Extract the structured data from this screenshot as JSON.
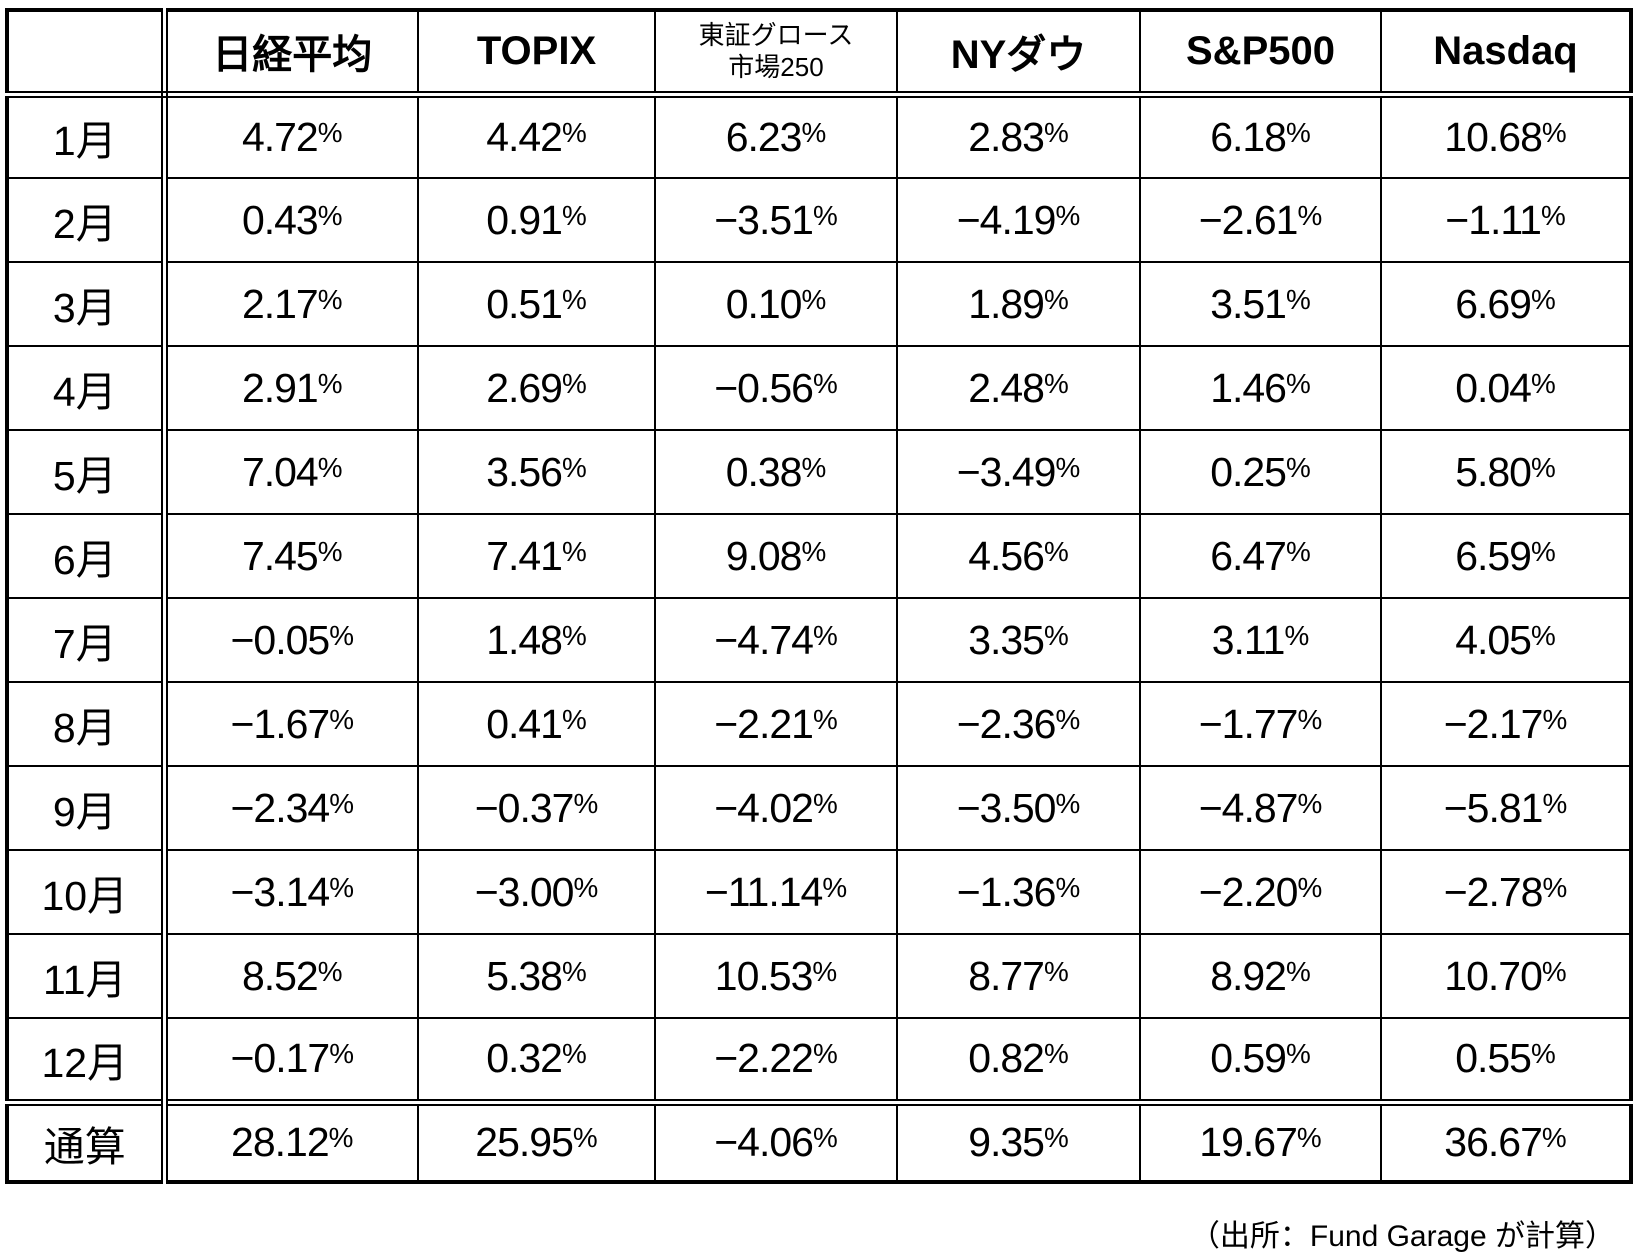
{
  "table": {
    "corner_label": "",
    "columns": [
      {
        "label": "日経平均"
      },
      {
        "label": "TOPIX"
      },
      {
        "label": "東証グロース",
        "sublabel": "市場250"
      },
      {
        "label": "NYダウ"
      },
      {
        "label": "S&P500"
      },
      {
        "label": "Nasdaq"
      }
    ],
    "rows": [
      {
        "label": "1月",
        "values": [
          "4.72%",
          "4.42%",
          "6.23%",
          "2.83%",
          "6.18%",
          "10.68%"
        ]
      },
      {
        "label": "2月",
        "values": [
          "0.43%",
          "0.91%",
          "−3.51%",
          "−4.19%",
          "−2.61%",
          "−1.11%"
        ]
      },
      {
        "label": "3月",
        "values": [
          "2.17%",
          "0.51%",
          "0.10%",
          "1.89%",
          "3.51%",
          "6.69%"
        ]
      },
      {
        "label": "4月",
        "values": [
          "2.91%",
          "2.69%",
          "−0.56%",
          "2.48%",
          "1.46%",
          "0.04%"
        ]
      },
      {
        "label": "5月",
        "values": [
          "7.04%",
          "3.56%",
          "0.38%",
          "−3.49%",
          "0.25%",
          "5.80%"
        ]
      },
      {
        "label": "6月",
        "values": [
          "7.45%",
          "7.41%",
          "9.08%",
          "4.56%",
          "6.47%",
          "6.59%"
        ]
      },
      {
        "label": "7月",
        "values": [
          "−0.05%",
          "1.48%",
          "−4.74%",
          "3.35%",
          "3.11%",
          "4.05%"
        ]
      },
      {
        "label": "8月",
        "values": [
          "−1.67%",
          "0.41%",
          "−2.21%",
          "−2.36%",
          "−1.77%",
          "−2.17%"
        ]
      },
      {
        "label": "9月",
        "values": [
          "−2.34%",
          "−0.37%",
          "−4.02%",
          "−3.50%",
          "−4.87%",
          "−5.81%"
        ]
      },
      {
        "label": "10月",
        "values": [
          "−3.14%",
          "−3.00%",
          "−11.14%",
          "−1.36%",
          "−2.20%",
          "−2.78%"
        ]
      },
      {
        "label": "11月",
        "values": [
          "8.52%",
          "5.38%",
          "10.53%",
          "8.77%",
          "8.92%",
          "10.70%"
        ]
      },
      {
        "label": "12月",
        "values": [
          "−0.17%",
          "0.32%",
          "−2.22%",
          "0.82%",
          "0.59%",
          "0.55%"
        ]
      },
      {
        "label": "通算",
        "total": true,
        "values": [
          "28.12%",
          "25.95%",
          "−4.06%",
          "9.35%",
          "19.67%",
          "36.67%"
        ]
      }
    ]
  },
  "footer": {
    "source": "（出所：Fund Garage が計算）"
  },
  "colors": {
    "text": "#000000",
    "border": "#000000",
    "background": "#ffffff"
  },
  "chart_data": {
    "type": "table",
    "unit": "%",
    "categories": [
      "1月",
      "2月",
      "3月",
      "4月",
      "5月",
      "6月",
      "7月",
      "8月",
      "9月",
      "10月",
      "11月",
      "12月",
      "通算"
    ],
    "series": [
      {
        "name": "日経平均",
        "values": [
          4.72,
          0.43,
          2.17,
          2.91,
          7.04,
          7.45,
          -0.05,
          -1.67,
          -2.34,
          -3.14,
          8.52,
          -0.17,
          28.12
        ]
      },
      {
        "name": "TOPIX",
        "values": [
          4.42,
          0.91,
          0.51,
          2.69,
          3.56,
          7.41,
          1.48,
          0.41,
          -0.37,
          -3.0,
          5.38,
          0.32,
          25.95
        ]
      },
      {
        "name": "東証グロース市場250",
        "values": [
          6.23,
          -3.51,
          0.1,
          -0.56,
          0.38,
          9.08,
          -4.74,
          -2.21,
          -4.02,
          -11.14,
          10.53,
          -2.22,
          -4.06
        ]
      },
      {
        "name": "NYダウ",
        "values": [
          2.83,
          -4.19,
          1.89,
          2.48,
          -3.49,
          4.56,
          3.35,
          -2.36,
          -3.5,
          -1.36,
          8.77,
          0.82,
          9.35
        ]
      },
      {
        "name": "S&P500",
        "values": [
          6.18,
          -2.61,
          3.51,
          1.46,
          0.25,
          6.47,
          3.11,
          -1.77,
          -4.87,
          -2.2,
          8.92,
          0.59,
          19.67
        ]
      },
      {
        "name": "Nasdaq",
        "values": [
          10.68,
          -1.11,
          6.69,
          0.04,
          5.8,
          6.59,
          4.05,
          -2.17,
          -5.81,
          -2.78,
          10.7,
          0.55,
          36.67
        ]
      }
    ],
    "source_note": "（出所：Fund Garage が計算）"
  }
}
